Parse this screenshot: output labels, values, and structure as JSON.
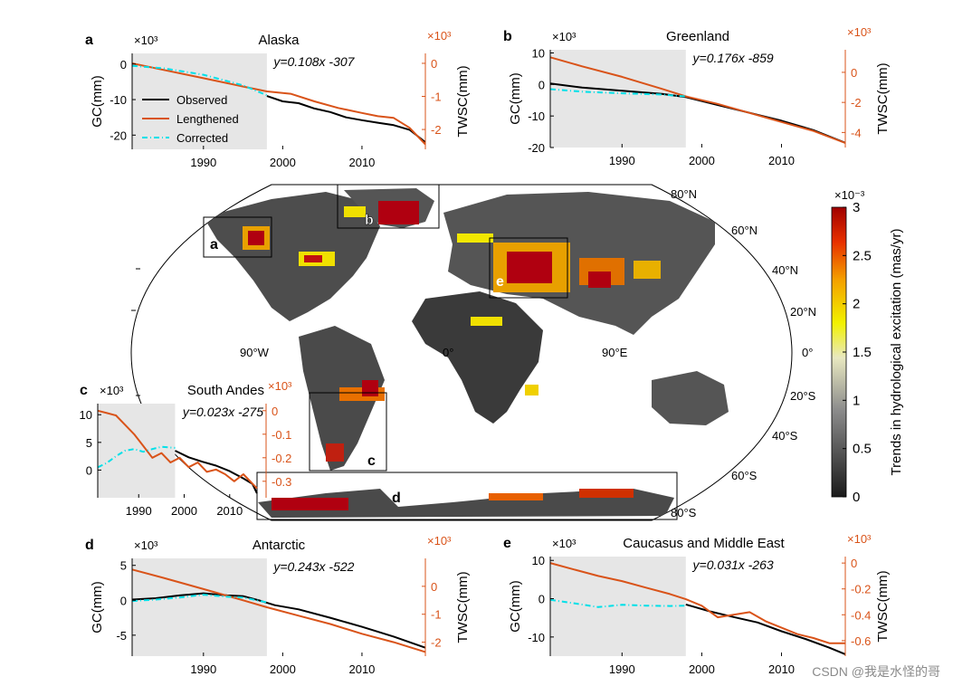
{
  "colors": {
    "observed": "#000000",
    "lengthened": "#d95319",
    "corrected": "#00e0e8",
    "shade": "#e6e6e6"
  },
  "legend": {
    "observed": "Observed",
    "lengthened": "Lengthened",
    "corrected": "Corrected"
  },
  "left_axis_label": "GC(mm)",
  "right_axis_label": "TWSC(mm)",
  "map": {
    "colorbar_label": "Trends in hydrological excitation (mas/yr)",
    "colorbar_exponent": "×10⁻³",
    "colorbar_ticks": [
      "0",
      "0.5",
      "1",
      "1.5",
      "2",
      "2.5",
      "3"
    ],
    "lat_labels": [
      "80°N",
      "60°N",
      "40°N",
      "20°N",
      "0°",
      "20°S",
      "40°S",
      "60°S",
      "80°S"
    ],
    "lon_labels": [
      "90°W",
      "0°",
      "90°E"
    ],
    "region_letters": [
      "a",
      "b",
      "c",
      "d",
      "e"
    ]
  },
  "chart_data": [
    {
      "type": "line",
      "panel": "a",
      "title": "Alaska",
      "equation": "y=0.108x -307",
      "left_exponent": "×10³",
      "right_exponent": "×10³",
      "xlim": [
        1981,
        2018
      ],
      "xticks": [
        "1990",
        "2000",
        "2010"
      ],
      "ylim_left": [
        -24,
        3
      ],
      "yticks_left": [
        "0",
        "-10",
        "-20"
      ],
      "ylim_right": [
        -2.6,
        0.3
      ],
      "yticks_right": [
        "0",
        "-1",
        "-2"
      ],
      "shade_until": 1998,
      "series": [
        {
          "name": "Observed",
          "axis": "left",
          "x": [
            1998,
            2000,
            2002,
            2004,
            2006,
            2008,
            2010,
            2012,
            2014,
            2016,
            2018
          ],
          "y": [
            -9,
            -10.5,
            -11,
            -12.5,
            -13.5,
            -15,
            -15.8,
            -16.5,
            -17.2,
            -18.5,
            -22
          ]
        },
        {
          "name": "Lengthened",
          "axis": "right",
          "x": [
            1981,
            1985,
            1990,
            1995,
            1998,
            2001,
            2004,
            2007,
            2010,
            2012,
            2014,
            2016,
            2018
          ],
          "y": [
            0.0,
            -0.2,
            -0.45,
            -0.7,
            -0.85,
            -0.92,
            -1.15,
            -1.35,
            -1.5,
            -1.6,
            -1.65,
            -1.95,
            -2.45
          ]
        },
        {
          "name": "Corrected",
          "axis": "left",
          "x": [
            1981,
            1985,
            1990,
            1995,
            1998
          ],
          "y": [
            -0.5,
            -1.2,
            -3,
            -6,
            -8.8
          ]
        }
      ]
    },
    {
      "type": "line",
      "panel": "b",
      "title": "Greenland",
      "equation": "y=0.176x -859",
      "left_exponent": "×10³",
      "right_exponent": "×10³",
      "xlim": [
        1981,
        2018
      ],
      "xticks": [
        "1990",
        "2000",
        "2010"
      ],
      "ylim_left": [
        -20,
        11
      ],
      "yticks_left": [
        "10",
        "0",
        "-10",
        "-20"
      ],
      "ylim_right": [
        -5,
        1.5
      ],
      "yticks_right": [
        "0",
        "-2",
        "-4"
      ],
      "shade_until": 1998,
      "series": [
        {
          "name": "Observed",
          "axis": "left",
          "x": [
            1981,
            1985,
            1990,
            1995,
            1998,
            2002,
            2006,
            2010,
            2014,
            2018
          ],
          "y": [
            0.3,
            -1,
            -2,
            -3,
            -4,
            -6.5,
            -9,
            -11.5,
            -14.5,
            -18.5
          ]
        },
        {
          "name": "Lengthened",
          "axis": "right",
          "x": [
            1981,
            1985,
            1990,
            1995,
            1998,
            2002,
            2006,
            2010,
            2014,
            2018
          ],
          "y": [
            1.0,
            0.4,
            -0.3,
            -1.1,
            -1.6,
            -2.1,
            -2.7,
            -3.3,
            -3.9,
            -4.7
          ]
        },
        {
          "name": "Corrected",
          "axis": "left",
          "x": [
            1981,
            1985,
            1990,
            1995,
            1998
          ],
          "y": [
            -1.5,
            -2.3,
            -2.8,
            -3.2,
            -3.8
          ]
        }
      ]
    },
    {
      "type": "line",
      "panel": "c",
      "title": "South Andes",
      "equation": "y=0.023x -275",
      "left_exponent": "×10³",
      "right_exponent": "×10³",
      "xlim": [
        1981,
        2018
      ],
      "xticks": [
        "1990",
        "2000",
        "2010"
      ],
      "ylim_left": [
        -5,
        12
      ],
      "yticks_left": [
        "10",
        "5",
        "0"
      ],
      "ylim_right": [
        -0.37,
        0.03
      ],
      "yticks_right": [
        "0",
        "-0.1",
        "-0.2",
        "-0.3"
      ],
      "shade_until": 1998,
      "series": [
        {
          "name": "Observed",
          "axis": "left",
          "x": [
            1998,
            2001,
            2004,
            2007,
            2010,
            2013,
            2015,
            2016
          ],
          "y": [
            3.5,
            2.3,
            1.5,
            0.8,
            -0.2,
            -1.5,
            -2.5,
            -4.2
          ]
        },
        {
          "name": "Lengthened",
          "axis": "right",
          "x": [
            1981,
            1983,
            1985,
            1987,
            1989,
            1991,
            1993,
            1995,
            1997,
            1999,
            2001,
            2003,
            2005,
            2007,
            2009,
            2011,
            2013,
            2016
          ],
          "y": [
            0.0,
            -0.01,
            -0.02,
            -0.06,
            -0.1,
            -0.15,
            -0.2,
            -0.18,
            -0.22,
            -0.2,
            -0.24,
            -0.22,
            -0.26,
            -0.25,
            -0.27,
            -0.3,
            -0.27,
            -0.33
          ]
        },
        {
          "name": "Corrected",
          "axis": "left",
          "x": [
            1981,
            1983,
            1985,
            1987,
            1989,
            1991,
            1993,
            1995,
            1998
          ],
          "y": [
            0.5,
            1.3,
            2.5,
            3.5,
            3.8,
            3.3,
            3.8,
            4.2,
            4.0
          ]
        }
      ]
    },
    {
      "type": "line",
      "panel": "d",
      "title": "Antarctic",
      "equation": "y=0.243x -522",
      "left_exponent": "×10³",
      "right_exponent": "×10³",
      "xlim": [
        1981,
        2018
      ],
      "xticks": [
        "1990",
        "2000",
        "2010"
      ],
      "ylim_left": [
        -8,
        6
      ],
      "yticks_left": [
        "5",
        "0",
        "-5"
      ],
      "ylim_right": [
        -2.5,
        1
      ],
      "yticks_right": [
        "0",
        "-1",
        "-2"
      ],
      "shade_until": 1998,
      "series": [
        {
          "name": "Observed",
          "axis": "left",
          "x": [
            1981,
            1984,
            1987,
            1990,
            1993,
            1995,
            1997,
            1999,
            2002,
            2006,
            2010,
            2014,
            2018
          ],
          "y": [
            0.1,
            0.3,
            0.7,
            1.0,
            0.7,
            0.6,
            0.0,
            -0.7,
            -1.3,
            -2.5,
            -3.8,
            -5.2,
            -6.8
          ]
        },
        {
          "name": "Lengthened",
          "axis": "right",
          "x": [
            1981,
            1985,
            1990,
            1995,
            1998,
            2002,
            2006,
            2010,
            2014,
            2018
          ],
          "y": [
            0.6,
            0.3,
            -0.1,
            -0.5,
            -0.75,
            -1.05,
            -1.35,
            -1.7,
            -2.0,
            -2.35
          ]
        },
        {
          "name": "Corrected",
          "axis": "left",
          "x": [
            1981,
            1984,
            1987,
            1990,
            1993,
            1995,
            1998
          ],
          "y": [
            -0.1,
            0.1,
            0.4,
            0.8,
            0.5,
            0.4,
            -0.3
          ]
        }
      ]
    },
    {
      "type": "line",
      "panel": "e",
      "title": "Caucasus and Middle East",
      "equation": "y=0.031x -263",
      "left_exponent": "×10³",
      "right_exponent": "×10³",
      "xlim": [
        1981,
        2018
      ],
      "xticks": [
        "1990",
        "2000",
        "2010"
      ],
      "ylim_left": [
        -15,
        11
      ],
      "yticks_left": [
        "10",
        "0",
        "-10"
      ],
      "ylim_right": [
        -0.72,
        0.05
      ],
      "yticks_right": [
        "0",
        "-0.2",
        "-0.4",
        "-0.6"
      ],
      "shade_until": 1998,
      "series": [
        {
          "name": "Observed",
          "axis": "left",
          "x": [
            1998,
            2001,
            2004,
            2007,
            2010,
            2013,
            2016,
            2018
          ],
          "y": [
            -1.5,
            -3.3,
            -4.8,
            -6.2,
            -8.5,
            -10.5,
            -12.8,
            -14.5
          ]
        },
        {
          "name": "Lengthened",
          "axis": "right",
          "x": [
            1981,
            1984,
            1987,
            1990,
            1993,
            1996,
            1998,
            2000,
            2002,
            2004,
            2006,
            2008,
            2010,
            2012,
            2014,
            2016,
            2018
          ],
          "y": [
            0.0,
            -0.05,
            -0.1,
            -0.14,
            -0.19,
            -0.24,
            -0.28,
            -0.33,
            -0.42,
            -0.4,
            -0.38,
            -0.45,
            -0.5,
            -0.55,
            -0.58,
            -0.62,
            -0.62
          ]
        },
        {
          "name": "Corrected",
          "axis": "left",
          "x": [
            1981,
            1984,
            1987,
            1990,
            1993,
            1996,
            1998
          ],
          "y": [
            -0.3,
            -1.2,
            -2.2,
            -1.6,
            -1.8,
            -1.9,
            -1.8
          ]
        }
      ]
    }
  ],
  "watermark": "CSDN @我是水怪的哥"
}
